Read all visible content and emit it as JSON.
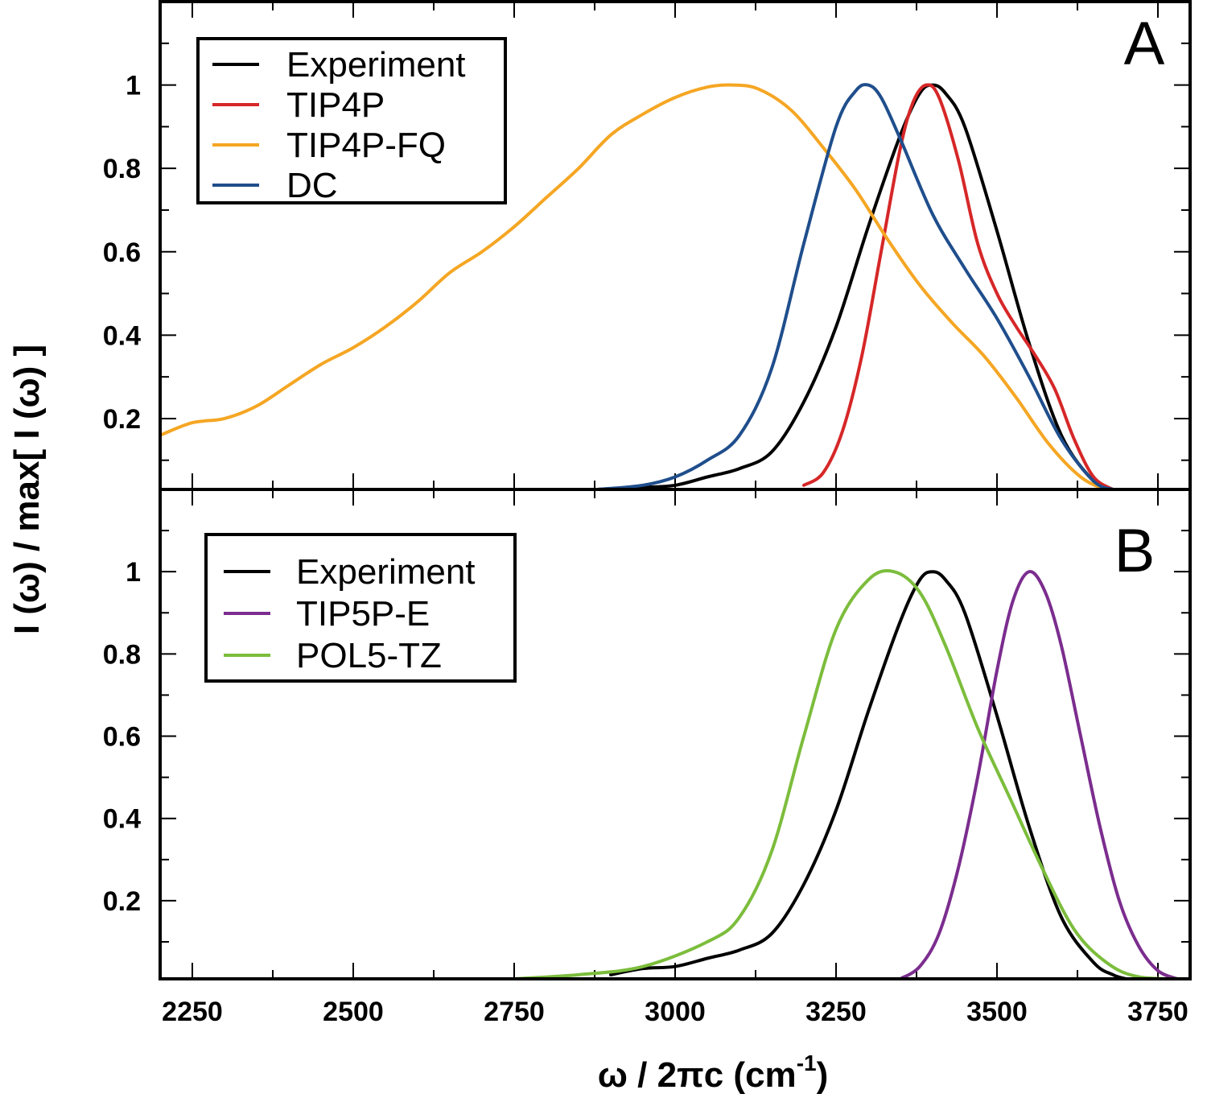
{
  "chart_data": [
    {
      "type": "line",
      "panel_label": "A",
      "xlim": [
        2200,
        3800
      ],
      "ylim": [
        0.03,
        1.2
      ],
      "ylabel": "I (ω) / max[ I (ω) ]",
      "yticks": [
        0.2,
        0.4,
        0.6,
        0.8,
        1
      ],
      "ytick_labels": [
        "0.2",
        "0.4",
        "0.6",
        "0.8",
        "1"
      ],
      "legend_position": "top-left",
      "series": [
        {
          "name": "Experiment",
          "color": "#000000",
          "x": [
            2880,
            2950,
            3000,
            3050,
            3100,
            3150,
            3200,
            3250,
            3300,
            3350,
            3380,
            3400,
            3420,
            3450,
            3500,
            3550,
            3600,
            3650,
            3680
          ],
          "y": [
            0.03,
            0.035,
            0.04,
            0.06,
            0.08,
            0.12,
            0.24,
            0.42,
            0.66,
            0.88,
            0.98,
            1.0,
            0.98,
            0.9,
            0.65,
            0.38,
            0.16,
            0.05,
            0.03
          ]
        },
        {
          "name": "TIP4P",
          "color": "#d62728",
          "x": [
            3200,
            3230,
            3260,
            3290,
            3320,
            3350,
            3370,
            3390,
            3410,
            3440,
            3470,
            3500,
            3530,
            3560,
            3590,
            3620,
            3650,
            3680
          ],
          "y": [
            0.04,
            0.07,
            0.17,
            0.35,
            0.6,
            0.85,
            0.96,
            1.0,
            0.97,
            0.82,
            0.62,
            0.5,
            0.42,
            0.35,
            0.27,
            0.15,
            0.06,
            0.03
          ]
        },
        {
          "name": "TIP4P-FQ",
          "color": "#f5a623",
          "x": [
            2200,
            2250,
            2300,
            2350,
            2400,
            2450,
            2500,
            2550,
            2600,
            2650,
            2700,
            2750,
            2800,
            2850,
            2900,
            2950,
            3000,
            3050,
            3090,
            3130,
            3180,
            3230,
            3280,
            3330,
            3380,
            3430,
            3480,
            3530,
            3580,
            3630,
            3670,
            3690
          ],
          "y": [
            0.16,
            0.19,
            0.2,
            0.23,
            0.28,
            0.33,
            0.37,
            0.42,
            0.48,
            0.55,
            0.6,
            0.66,
            0.73,
            0.8,
            0.88,
            0.93,
            0.97,
            0.995,
            1.0,
            0.99,
            0.94,
            0.85,
            0.75,
            0.63,
            0.52,
            0.43,
            0.35,
            0.25,
            0.14,
            0.06,
            0.03,
            0.03
          ]
        },
        {
          "name": "DC",
          "color": "#1f4e8c",
          "x": [
            2880,
            2950,
            3000,
            3050,
            3100,
            3150,
            3200,
            3250,
            3280,
            3300,
            3320,
            3350,
            3400,
            3450,
            3500,
            3550,
            3600,
            3650,
            3680
          ],
          "y": [
            0.03,
            0.04,
            0.06,
            0.1,
            0.16,
            0.32,
            0.62,
            0.9,
            0.985,
            1.0,
            0.97,
            0.87,
            0.69,
            0.56,
            0.44,
            0.3,
            0.15,
            0.05,
            0.03
          ]
        }
      ]
    },
    {
      "type": "line",
      "panel_label": "B",
      "xlim": [
        2200,
        3800
      ],
      "ylim": [
        0.01,
        1.2
      ],
      "xlabel": "ω / 2πc (cm",
      "xlabel_superscript": "-1",
      "xlabel_suffix": ")",
      "xticks": [
        2250,
        2500,
        2750,
        3000,
        3250,
        3500,
        3750
      ],
      "xtick_labels": [
        "2250",
        "2500",
        "2750",
        "3000",
        "3250",
        "3500",
        "3750"
      ],
      "yticks": [
        0.2,
        0.4,
        0.6,
        0.8,
        1
      ],
      "ytick_labels": [
        "0.2",
        "0.4",
        "0.6",
        "0.8",
        "1"
      ],
      "legend_position": "top-left",
      "series": [
        {
          "name": "Experiment",
          "color": "#000000",
          "x": [
            2900,
            2950,
            3000,
            3050,
            3100,
            3150,
            3200,
            3250,
            3300,
            3350,
            3380,
            3400,
            3420,
            3450,
            3500,
            3550,
            3600,
            3650,
            3680,
            3700
          ],
          "y": [
            0.02,
            0.035,
            0.04,
            0.06,
            0.08,
            0.12,
            0.24,
            0.42,
            0.66,
            0.88,
            0.98,
            1.0,
            0.98,
            0.9,
            0.65,
            0.38,
            0.16,
            0.05,
            0.02,
            0.01
          ]
        },
        {
          "name": "TIP5P-E",
          "color": "#7b2d8e",
          "x": [
            3350,
            3380,
            3410,
            3440,
            3470,
            3500,
            3525,
            3550,
            3575,
            3600,
            3630,
            3660,
            3690,
            3720,
            3750,
            3780
          ],
          "y": [
            0.01,
            0.04,
            0.12,
            0.28,
            0.5,
            0.76,
            0.93,
            1.0,
            0.95,
            0.82,
            0.6,
            0.38,
            0.2,
            0.09,
            0.03,
            0.01
          ]
        },
        {
          "name": "POL5-TZ",
          "color": "#7cbd3c",
          "x": [
            2750,
            2850,
            2950,
            3050,
            3100,
            3150,
            3200,
            3250,
            3300,
            3340,
            3380,
            3420,
            3470,
            3520,
            3570,
            3620,
            3670,
            3720,
            3800
          ],
          "y": [
            0.01,
            0.02,
            0.04,
            0.1,
            0.16,
            0.32,
            0.6,
            0.86,
            0.98,
            1.0,
            0.95,
            0.82,
            0.62,
            0.45,
            0.28,
            0.13,
            0.05,
            0.015,
            0.01
          ]
        }
      ]
    }
  ]
}
